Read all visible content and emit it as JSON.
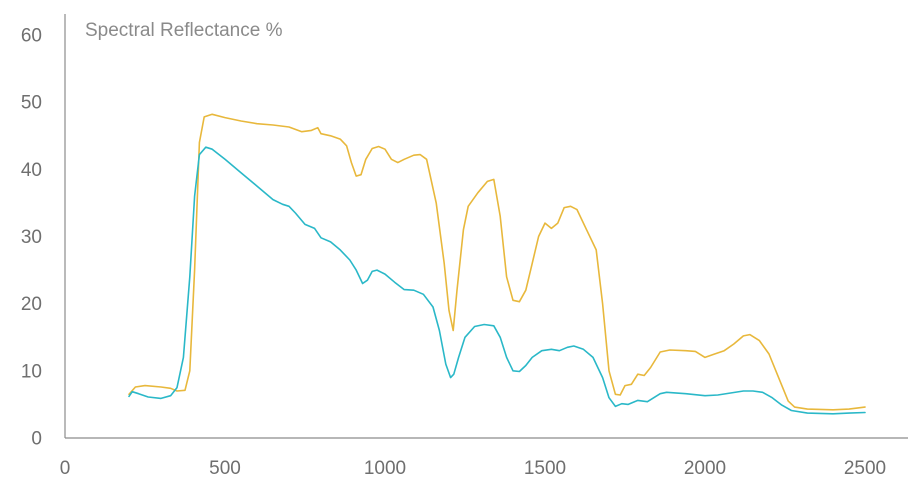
{
  "chart_data": {
    "type": "line",
    "title": "Spectral Reflectance %",
    "xlabel": "",
    "ylabel": "",
    "xlim": [
      0,
      2500
    ],
    "ylim": [
      0,
      60
    ],
    "x_ticks": [
      0,
      500,
      1000,
      1500,
      2000,
      2500
    ],
    "y_ticks": [
      0,
      10,
      20,
      30,
      40,
      50,
      60
    ],
    "grid": false,
    "legend": "none",
    "axis_color": "#8c8c8c",
    "text_color": "#6f6f6f",
    "series": [
      {
        "color": "#e8b83c",
        "points": [
          [
            200,
            6.5
          ],
          [
            220,
            7.6
          ],
          [
            250,
            7.8
          ],
          [
            300,
            7.6
          ],
          [
            330,
            7.4
          ],
          [
            350,
            7.0
          ],
          [
            375,
            7.1
          ],
          [
            390,
            10
          ],
          [
            405,
            25
          ],
          [
            420,
            44
          ],
          [
            435,
            47.8
          ],
          [
            460,
            48.2
          ],
          [
            500,
            47.7
          ],
          [
            550,
            47.2
          ],
          [
            600,
            46.8
          ],
          [
            650,
            46.6
          ],
          [
            700,
            46.3
          ],
          [
            740,
            45.6
          ],
          [
            770,
            45.8
          ],
          [
            790,
            46.2
          ],
          [
            800,
            45.3
          ],
          [
            830,
            45.0
          ],
          [
            860,
            44.5
          ],
          [
            880,
            43.5
          ],
          [
            895,
            41
          ],
          [
            910,
            39.0
          ],
          [
            925,
            39.2
          ],
          [
            940,
            41.5
          ],
          [
            960,
            43.1
          ],
          [
            980,
            43.4
          ],
          [
            1000,
            43.0
          ],
          [
            1020,
            41.5
          ],
          [
            1040,
            41.0
          ],
          [
            1060,
            41.5
          ],
          [
            1090,
            42.1
          ],
          [
            1110,
            42.2
          ],
          [
            1130,
            41.5
          ],
          [
            1160,
            35
          ],
          [
            1185,
            26
          ],
          [
            1200,
            19
          ],
          [
            1213,
            16.0
          ],
          [
            1225,
            22
          ],
          [
            1245,
            31
          ],
          [
            1260,
            34.5
          ],
          [
            1290,
            36.5
          ],
          [
            1320,
            38.2
          ],
          [
            1340,
            38.5
          ],
          [
            1360,
            33
          ],
          [
            1380,
            24
          ],
          [
            1400,
            20.5
          ],
          [
            1420,
            20.3
          ],
          [
            1440,
            22
          ],
          [
            1460,
            26
          ],
          [
            1480,
            30
          ],
          [
            1500,
            32
          ],
          [
            1520,
            31.2
          ],
          [
            1540,
            32
          ],
          [
            1560,
            34.3
          ],
          [
            1580,
            34.5
          ],
          [
            1600,
            34
          ],
          [
            1630,
            31
          ],
          [
            1660,
            28
          ],
          [
            1680,
            20
          ],
          [
            1700,
            10
          ],
          [
            1720,
            6.5
          ],
          [
            1735,
            6.4
          ],
          [
            1750,
            7.8
          ],
          [
            1770,
            8.0
          ],
          [
            1790,
            9.5
          ],
          [
            1810,
            9.3
          ],
          [
            1830,
            10.5
          ],
          [
            1860,
            12.8
          ],
          [
            1890,
            13.1
          ],
          [
            1940,
            13.0
          ],
          [
            1970,
            12.9
          ],
          [
            2000,
            12.0
          ],
          [
            2030,
            12.5
          ],
          [
            2060,
            13.0
          ],
          [
            2090,
            14.0
          ],
          [
            2120,
            15.2
          ],
          [
            2140,
            15.4
          ],
          [
            2170,
            14.5
          ],
          [
            2200,
            12.5
          ],
          [
            2230,
            9
          ],
          [
            2260,
            5.5
          ],
          [
            2280,
            4.6
          ],
          [
            2320,
            4.3
          ],
          [
            2400,
            4.2
          ],
          [
            2450,
            4.3
          ],
          [
            2500,
            4.6
          ]
        ]
      },
      {
        "color": "#2ab8c8",
        "points": [
          [
            200,
            6.2
          ],
          [
            210,
            6.9
          ],
          [
            230,
            6.6
          ],
          [
            260,
            6.1
          ],
          [
            300,
            5.9
          ],
          [
            330,
            6.3
          ],
          [
            350,
            7.5
          ],
          [
            370,
            12
          ],
          [
            390,
            24
          ],
          [
            405,
            36
          ],
          [
            420,
            42.2
          ],
          [
            440,
            43.3
          ],
          [
            460,
            43.0
          ],
          [
            500,
            41.5
          ],
          [
            550,
            39.5
          ],
          [
            600,
            37.5
          ],
          [
            650,
            35.5
          ],
          [
            680,
            34.8
          ],
          [
            700,
            34.5
          ],
          [
            720,
            33.5
          ],
          [
            750,
            31.8
          ],
          [
            780,
            31.2
          ],
          [
            800,
            29.8
          ],
          [
            830,
            29.2
          ],
          [
            860,
            28.0
          ],
          [
            890,
            26.5
          ],
          [
            910,
            25.0
          ],
          [
            930,
            23.0
          ],
          [
            945,
            23.5
          ],
          [
            960,
            24.8
          ],
          [
            975,
            25.0
          ],
          [
            1000,
            24.4
          ],
          [
            1030,
            23.2
          ],
          [
            1060,
            22.1
          ],
          [
            1090,
            22.0
          ],
          [
            1120,
            21.4
          ],
          [
            1150,
            19.5
          ],
          [
            1170,
            16
          ],
          [
            1190,
            11
          ],
          [
            1205,
            9.0
          ],
          [
            1215,
            9.5
          ],
          [
            1230,
            12
          ],
          [
            1250,
            15
          ],
          [
            1280,
            16.6
          ],
          [
            1310,
            16.9
          ],
          [
            1340,
            16.7
          ],
          [
            1360,
            15
          ],
          [
            1380,
            12
          ],
          [
            1400,
            10.0
          ],
          [
            1420,
            9.9
          ],
          [
            1440,
            10.8
          ],
          [
            1460,
            12
          ],
          [
            1490,
            13
          ],
          [
            1520,
            13.2
          ],
          [
            1545,
            13.0
          ],
          [
            1570,
            13.5
          ],
          [
            1590,
            13.7
          ],
          [
            1620,
            13.2
          ],
          [
            1650,
            12
          ],
          [
            1680,
            9
          ],
          [
            1700,
            6
          ],
          [
            1720,
            4.7
          ],
          [
            1740,
            5.1
          ],
          [
            1760,
            5.0
          ],
          [
            1790,
            5.6
          ],
          [
            1820,
            5.4
          ],
          [
            1860,
            6.6
          ],
          [
            1880,
            6.8
          ],
          [
            1940,
            6.6
          ],
          [
            2000,
            6.3
          ],
          [
            2040,
            6.4
          ],
          [
            2080,
            6.7
          ],
          [
            2120,
            7.0
          ],
          [
            2150,
            7.0
          ],
          [
            2180,
            6.8
          ],
          [
            2210,
            6.0
          ],
          [
            2240,
            4.9
          ],
          [
            2270,
            4.1
          ],
          [
            2320,
            3.7
          ],
          [
            2400,
            3.6
          ],
          [
            2450,
            3.7
          ],
          [
            2500,
            3.8
          ]
        ]
      }
    ]
  }
}
